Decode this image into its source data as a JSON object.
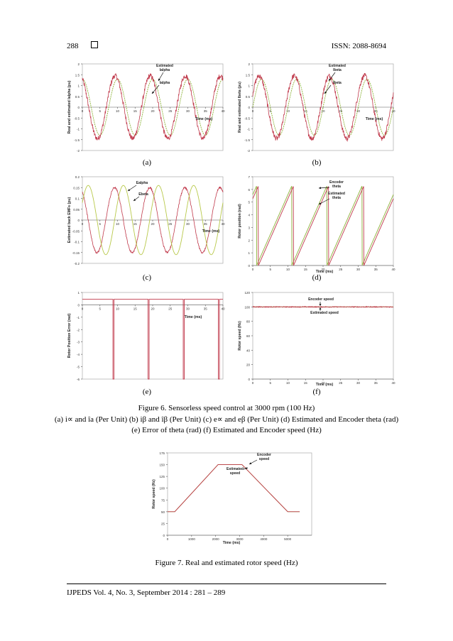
{
  "header": {
    "page_number": "288",
    "issn": "ISSN: 2088-8694"
  },
  "figure6": {
    "caption_line1": "Figure 6. Sensorless speed control at 3000 rpm (100 Hz)",
    "caption_line2": "(a) i∝ and îa (Per Unit) (b) iβ and îβ (Per Unit) (c) e∝ and eβ (Per Unit) (d) Estimated and Encoder theta (rad)",
    "caption_line3": "(e) Error of theta (rad) (f) Estimated and Encoder speed (Hz)",
    "sublabels": [
      "(a)",
      "(b)",
      "(c)",
      "(d)",
      "(e)",
      "(f)"
    ]
  },
  "figure7": {
    "caption": "Figure 7. Real and estimated rotor speed (Hz)"
  },
  "footer": {
    "text": "IJPEDS  Vol. 4, No. 3, September 2014 :  281 – 289"
  },
  "chart_data": [
    {
      "id": "a",
      "type": "line",
      "ylabel": "Real and estimated Ialpha (pu)",
      "xlabel": "Time (ms)",
      "xlim": [
        0,
        40
      ],
      "ylim": [
        -2,
        2
      ],
      "xticks": [
        "0",
        "5",
        "10",
        "15",
        "20",
        "25",
        "30",
        "35",
        "40"
      ],
      "yticks": [
        "-2",
        "-1.5",
        "-1",
        "-0.5",
        "0",
        "0.5",
        "1",
        "1.5",
        "2"
      ],
      "annotations": [
        "Estimated Ialpha",
        "Ialpha"
      ],
      "series": [
        {
          "name": "Ialpha",
          "color": "#8db33a",
          "kind": "sine",
          "amplitude": 1.3,
          "frequency_hz": 100,
          "phase_deg": 90,
          "noise": 0
        },
        {
          "name": "Estimated Ialpha",
          "color": "#c0394b",
          "kind": "sine",
          "amplitude": 1.45,
          "frequency_hz": 100,
          "phase_deg": 115,
          "noise": 0.12
        }
      ]
    },
    {
      "id": "b",
      "type": "line",
      "ylabel": "Real and estimated Ibeta (pu)",
      "xlabel": "Time (ms)",
      "xlim": [
        0,
        40
      ],
      "ylim": [
        -2,
        2
      ],
      "xticks": [
        "0",
        "5",
        "10",
        "15",
        "20",
        "25",
        "30",
        "35",
        "40"
      ],
      "yticks": [
        "-2",
        "-1.5",
        "-1",
        "-0.5",
        "0",
        "0.5",
        "1",
        "1.5",
        "2"
      ],
      "annotations": [
        "Estimated Ibeta",
        "Ibeta"
      ],
      "series": [
        {
          "name": "Ibeta",
          "color": "#8db33a",
          "kind": "sine",
          "amplitude": 1.3,
          "frequency_hz": 100,
          "phase_deg": 0,
          "noise": 0
        },
        {
          "name": "Estimated Ibeta",
          "color": "#c0394b",
          "kind": "sine",
          "amplitude": 1.45,
          "frequency_hz": 100,
          "phase_deg": 25,
          "noise": 0.12
        }
      ]
    },
    {
      "id": "c",
      "type": "line",
      "ylabel": "Estimated back EMFs (pu)",
      "xlabel": "Time (ms)",
      "xlim": [
        0,
        40
      ],
      "ylim": [
        -0.2,
        0.2
      ],
      "xticks": [
        "0",
        "5",
        "10",
        "15",
        "20",
        "25",
        "30",
        "35",
        "40"
      ],
      "yticks": [
        "-0.2",
        "-0.15",
        "-0.1",
        "-0.05",
        "0",
        "0.05",
        "0.1",
        "0.15",
        "0.2"
      ],
      "annotations": [
        "Ealpha",
        "Ebeta"
      ],
      "series": [
        {
          "name": "Ealpha",
          "color": "#c0394b",
          "kind": "sine",
          "amplitude": 0.15,
          "frequency_hz": 100,
          "phase_deg": 120,
          "noise": 0.004
        },
        {
          "name": "Ebeta",
          "color": "#b8c94a",
          "kind": "sine",
          "amplitude": 0.16,
          "frequency_hz": 100,
          "phase_deg": 30,
          "noise": 0
        }
      ]
    },
    {
      "id": "d",
      "type": "line",
      "ylabel": "Rotor position (rad)",
      "xlabel": "Time (ms)",
      "xlim": [
        0,
        40
      ],
      "ylim": [
        0,
        7
      ],
      "xticks": [
        "0",
        "5",
        "10",
        "15",
        "20",
        "25",
        "30",
        "35",
        "40"
      ],
      "yticks": [
        "0",
        "1",
        "2",
        "3",
        "4",
        "5",
        "6",
        "7"
      ],
      "annotations": [
        "Encoder theta",
        "Estimated theta"
      ],
      "series": [
        {
          "name": "Encoder theta",
          "color": "#8db33a",
          "kind": "sawtooth",
          "period_ms": 10,
          "offset_ms": 1.1,
          "max": 6.28
        },
        {
          "name": "Estimated theta",
          "color": "#c0394b",
          "kind": "sawtooth",
          "period_ms": 10,
          "offset_ms": 1.6,
          "max": 6.28
        }
      ]
    },
    {
      "id": "e",
      "type": "line",
      "ylabel": "Rotor Position Error (rad)",
      "xlabel": "Time (ms)",
      "xlim": [
        0,
        40
      ],
      "ylim": [
        -6,
        1
      ],
      "xticks": [
        "0",
        "5",
        "10",
        "15",
        "20",
        "25",
        "30",
        "35",
        "40"
      ],
      "yticks": [
        "-6",
        "-5",
        "-4",
        "-3",
        "-2",
        "-1",
        "0",
        "1"
      ],
      "series": [
        {
          "name": "Error",
          "color": "#c0394b",
          "kind": "spikes",
          "base": 0.45,
          "spike_to": -6.0,
          "spike_times_ms": [
            8.7,
            18.7,
            28.7,
            38.7
          ],
          "spike_width_ms": 0.3
        }
      ]
    },
    {
      "id": "f",
      "type": "line",
      "ylabel": "Rotor speed (Hz)",
      "xlabel": "Time (ms)",
      "xlim": [
        0,
        40
      ],
      "ylim": [
        0,
        120
      ],
      "xticks": [
        "0",
        "5",
        "10",
        "15",
        "20",
        "25",
        "30",
        "35",
        "40"
      ],
      "yticks": [
        "0",
        "20",
        "40",
        "60",
        "80",
        "100",
        "120"
      ],
      "annotations": [
        "Encoder speed",
        "Estimated speed"
      ],
      "series": [
        {
          "name": "Encoder speed",
          "color": "#8db33a",
          "kind": "const",
          "value": 100
        },
        {
          "name": "Estimated speed",
          "color": "#c0394b",
          "kind": "const",
          "value": 100,
          "noise": 0.6
        }
      ]
    },
    {
      "id": "g",
      "type": "line",
      "ylabel": "Rotor speed (Hz)",
      "xlabel": "Time (ms)",
      "xlim": [
        0,
        6000
      ],
      "ylim": [
        0,
        175
      ],
      "xticks": [
        "0",
        "1000",
        "2000",
        "3000",
        "4000",
        "5000"
      ],
      "yticks": [
        "0",
        "25",
        "50",
        "75",
        "100",
        "125",
        "150",
        "175"
      ],
      "annotations": [
        "Encoder speed",
        "Estimated speed"
      ],
      "series": [
        {
          "name": "Encoder speed",
          "color": "#8db33a",
          "kind": "trapezoid",
          "points": [
            [
              0,
              50
            ],
            [
              300,
              50
            ],
            [
              2100,
              150
            ],
            [
              3100,
              150
            ],
            [
              5000,
              50
            ],
            [
              5500,
              50
            ]
          ]
        },
        {
          "name": "Estimated speed",
          "color": "#c0394b",
          "kind": "trapezoid",
          "points": [
            [
              0,
              50
            ],
            [
              300,
              50
            ],
            [
              2100,
              150
            ],
            [
              3100,
              150
            ],
            [
              5000,
              50
            ],
            [
              5500,
              50
            ]
          ]
        }
      ]
    }
  ]
}
